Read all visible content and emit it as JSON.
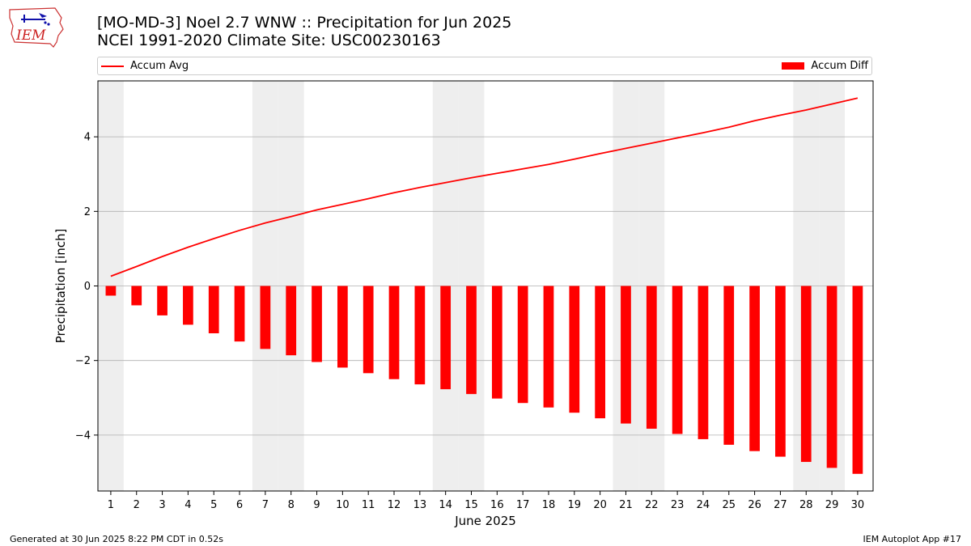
{
  "logo": {
    "text": "IEM",
    "icon": "iowa-map-weather-icon"
  },
  "header": {
    "title": "[MO-MD-3] Noel 2.7 WNW :: Precipitation for Jun 2025",
    "subtitle": "NCEI 1991-2020 Climate Site: USC00230163"
  },
  "legend": {
    "line_label": "Accum Avg",
    "bar_label": "Accum Diff"
  },
  "footer": {
    "left": "Generated at 30 Jun 2025 8:22 PM CDT in 0.52s",
    "right": "IEM Autoplot App #17"
  },
  "colors": {
    "series": "#ff0000",
    "weekend_shade": "#eeeeee",
    "grid": "#b0b0b0"
  },
  "chart_data": {
    "type": "bar",
    "xlabel": "June 2025",
    "ylabel": "Precipitation [inch]",
    "ylim": [
      -5.5,
      5.5
    ],
    "yticks": [
      -4,
      -2,
      0,
      2,
      4
    ],
    "grid": "horizontal",
    "legend_placement": "top",
    "categories": [
      "1",
      "2",
      "3",
      "4",
      "5",
      "6",
      "7",
      "8",
      "9",
      "10",
      "11",
      "12",
      "13",
      "14",
      "15",
      "16",
      "17",
      "18",
      "19",
      "20",
      "21",
      "22",
      "23",
      "24",
      "25",
      "26",
      "27",
      "28",
      "29",
      "30"
    ],
    "shaded_days": [
      1,
      7,
      8,
      14,
      15,
      21,
      22,
      28,
      29
    ],
    "series": [
      {
        "name": "Accum Avg",
        "type": "line",
        "values": [
          0.26,
          0.52,
          0.79,
          1.04,
          1.27,
          1.49,
          1.69,
          1.86,
          2.04,
          2.19,
          2.34,
          2.5,
          2.64,
          2.77,
          2.9,
          3.02,
          3.14,
          3.26,
          3.4,
          3.55,
          3.69,
          3.83,
          3.97,
          4.11,
          4.26,
          4.43,
          4.58,
          4.72,
          4.88,
          5.04
        ]
      },
      {
        "name": "Accum Diff",
        "type": "bar",
        "values": [
          -0.26,
          -0.52,
          -0.79,
          -1.04,
          -1.27,
          -1.49,
          -1.69,
          -1.86,
          -2.04,
          -2.19,
          -2.34,
          -2.5,
          -2.64,
          -2.77,
          -2.9,
          -3.02,
          -3.14,
          -3.26,
          -3.4,
          -3.55,
          -3.69,
          -3.83,
          -3.97,
          -4.11,
          -4.26,
          -4.43,
          -4.58,
          -4.72,
          -4.88,
          -5.04
        ]
      }
    ]
  }
}
